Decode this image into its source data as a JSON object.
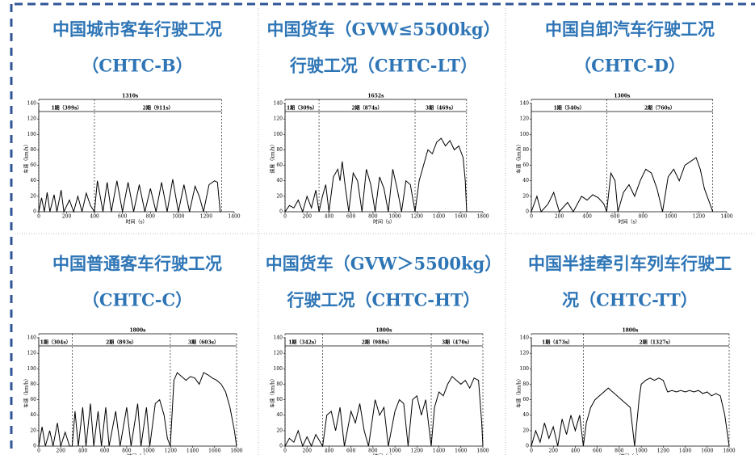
{
  "chart_data": [
    {
      "type": "line",
      "title": [
        "中国城市客车行驶工况",
        "（CHTC-B）"
      ],
      "xlabel": "时间（s）",
      "ylabel": "车速（km/h）",
      "color": "#000000",
      "xlim": [
        0,
        1400
      ],
      "xticks": [
        0,
        200,
        400,
        600,
        800,
        1000,
        1200,
        1400
      ],
      "ylim": [
        0,
        140
      ],
      "yticks": [
        0,
        20,
        40,
        60,
        80,
        100,
        120,
        140
      ],
      "duration_label": "1310s",
      "phases": [
        {
          "label": "1期（399s）",
          "duration": 399
        },
        {
          "label": "2期（911s）",
          "duration": 911
        }
      ],
      "x": [
        0,
        20,
        40,
        60,
        80,
        110,
        130,
        160,
        180,
        220,
        250,
        280,
        310,
        340,
        370,
        399,
        420,
        440,
        460,
        490,
        520,
        560,
        600,
        640,
        680,
        720,
        760,
        800,
        840,
        880,
        920,
        960,
        1000,
        1040,
        1080,
        1120,
        1150,
        1180,
        1220,
        1260,
        1280,
        1300,
        1310
      ],
      "values": [
        0,
        18,
        0,
        25,
        0,
        22,
        0,
        28,
        0,
        15,
        0,
        20,
        0,
        24,
        8,
        0,
        40,
        20,
        0,
        38,
        0,
        40,
        0,
        38,
        0,
        35,
        0,
        30,
        0,
        38,
        0,
        42,
        0,
        35,
        0,
        33,
        20,
        0,
        35,
        40,
        38,
        0,
        0
      ]
    },
    {
      "type": "line",
      "title": [
        "中国货车（GVW≤5500kg）",
        "行驶工况（CHTC-LT）"
      ],
      "xlabel": "时间（s）",
      "ylabel": "速度（km/h）",
      "color": "#000000",
      "xlim": [
        0,
        1800
      ],
      "xticks": [
        0,
        200,
        400,
        600,
        800,
        1000,
        1200,
        1400,
        1600,
        1800
      ],
      "ylim": [
        0,
        140
      ],
      "yticks": [
        0,
        20,
        40,
        60,
        80,
        100,
        120,
        140
      ],
      "duration_label": "1652s",
      "phases": [
        {
          "label": "1期（309s）",
          "duration": 309
        },
        {
          "label": "2期（874s）",
          "duration": 874
        },
        {
          "label": "3期（469s）",
          "duration": 469
        }
      ],
      "x": [
        0,
        40,
        80,
        120,
        160,
        200,
        240,
        280,
        309,
        340,
        370,
        400,
        440,
        480,
        500,
        520,
        550,
        580,
        620,
        660,
        700,
        740,
        780,
        820,
        860,
        900,
        940,
        980,
        1020,
        1060,
        1100,
        1140,
        1183,
        1220,
        1260,
        1300,
        1340,
        1380,
        1420,
        1460,
        1500,
        1540,
        1580,
        1620,
        1640,
        1652
      ],
      "values": [
        0,
        8,
        5,
        15,
        0,
        20,
        5,
        28,
        0,
        20,
        35,
        0,
        45,
        55,
        40,
        65,
        30,
        0,
        50,
        40,
        0,
        55,
        35,
        0,
        45,
        30,
        0,
        55,
        30,
        0,
        40,
        35,
        0,
        40,
        60,
        80,
        75,
        90,
        95,
        85,
        92,
        80,
        85,
        70,
        40,
        0
      ]
    },
    {
      "type": "line",
      "title": [
        "中国自卸汽车行驶工况",
        "（CHTC-D）"
      ],
      "xlabel": "时间（s）",
      "ylabel": "车速（km/h）",
      "color": "#000000",
      "xlim": [
        0,
        1400
      ],
      "xticks": [
        0,
        200,
        400,
        600,
        800,
        1000,
        1200,
        1400
      ],
      "ylim": [
        0,
        140
      ],
      "yticks": [
        0,
        20,
        40,
        60,
        80,
        100,
        120,
        140
      ],
      "duration_label": "1300s",
      "phases": [
        {
          "label": "1期（540s）",
          "duration": 540
        },
        {
          "label": "2期（760s）",
          "duration": 760
        }
      ],
      "x": [
        0,
        40,
        70,
        120,
        160,
        200,
        260,
        300,
        360,
        400,
        440,
        480,
        520,
        540,
        570,
        600,
        620,
        660,
        700,
        740,
        780,
        820,
        860,
        900,
        940,
        980,
        1020,
        1060,
        1100,
        1140,
        1180,
        1210,
        1240,
        1280,
        1300
      ],
      "values": [
        0,
        20,
        0,
        10,
        25,
        0,
        12,
        0,
        20,
        15,
        22,
        18,
        10,
        0,
        50,
        40,
        0,
        25,
        35,
        20,
        40,
        55,
        50,
        30,
        0,
        45,
        55,
        40,
        60,
        65,
        70,
        55,
        30,
        10,
        0
      ]
    },
    {
      "type": "line",
      "title": [
        "中国普通客车行驶工况",
        "（CHTC-C）"
      ],
      "xlabel": "时间（s）",
      "ylabel": "车速（km/h）",
      "color": "#000000",
      "xlim": [
        0,
        1800
      ],
      "xticks": [
        0,
        200,
        400,
        600,
        800,
        1000,
        1200,
        1400,
        1600,
        1800
      ],
      "ylim": [
        0,
        140
      ],
      "yticks": [
        0,
        20,
        40,
        60,
        80,
        100,
        120,
        140
      ],
      "duration_label": "1800s",
      "phases": [
        {
          "label": "1期（304s）",
          "duration": 304
        },
        {
          "label": "2期（893s）",
          "duration": 893
        },
        {
          "label": "3期（603s）",
          "duration": 603
        }
      ],
      "x": [
        0,
        30,
        60,
        100,
        130,
        170,
        200,
        240,
        280,
        304,
        330,
        360,
        400,
        430,
        470,
        500,
        540,
        570,
        610,
        640,
        700,
        740,
        800,
        840,
        900,
        930,
        980,
        1010,
        1060,
        1100,
        1140,
        1170,
        1197,
        1230,
        1260,
        1300,
        1340,
        1380,
        1420,
        1460,
        1500,
        1540,
        1580,
        1620,
        1660,
        1700,
        1740,
        1780,
        1800
      ],
      "values": [
        0,
        25,
        0,
        20,
        0,
        30,
        0,
        18,
        0,
        0,
        45,
        0,
        50,
        0,
        55,
        0,
        45,
        0,
        50,
        0,
        45,
        0,
        50,
        0,
        55,
        0,
        50,
        0,
        55,
        60,
        40,
        10,
        0,
        85,
        95,
        90,
        85,
        90,
        88,
        80,
        95,
        92,
        88,
        85,
        80,
        70,
        50,
        20,
        0
      ]
    },
    {
      "type": "line",
      "title": [
        "中国货车（GVW＞5500kg）",
        "行驶工况（CHTC-HT）"
      ],
      "xlabel": "时间（s）",
      "ylabel": "车速（km/h）",
      "color": "#000000",
      "xlim": [
        0,
        1800
      ],
      "xticks": [
        0,
        200,
        400,
        600,
        800,
        1000,
        1200,
        1400,
        1600,
        1800
      ],
      "ylim": [
        0,
        140
      ],
      "yticks": [
        0,
        20,
        40,
        60,
        80,
        100,
        120,
        140
      ],
      "duration_label": "1800s",
      "phases": [
        {
          "label": "1期（342s）",
          "duration": 342
        },
        {
          "label": "2期（988s）",
          "duration": 988
        },
        {
          "label": "3期（470s）",
          "duration": 470
        }
      ],
      "x": [
        0,
        40,
        80,
        120,
        160,
        200,
        240,
        280,
        342,
        380,
        420,
        460,
        500,
        540,
        600,
        640,
        680,
        720,
        760,
        820,
        860,
        900,
        940,
        1000,
        1040,
        1080,
        1120,
        1160,
        1200,
        1240,
        1280,
        1330,
        1360,
        1400,
        1440,
        1480,
        1520,
        1560,
        1600,
        1640,
        1680,
        1720,
        1760,
        1790,
        1800
      ],
      "values": [
        0,
        10,
        5,
        20,
        0,
        12,
        0,
        15,
        0,
        40,
        45,
        20,
        50,
        0,
        45,
        30,
        55,
        20,
        0,
        60,
        40,
        50,
        0,
        45,
        60,
        55,
        0,
        60,
        65,
        40,
        60,
        0,
        50,
        70,
        65,
        80,
        90,
        85,
        80,
        85,
        75,
        88,
        85,
        30,
        0
      ]
    },
    {
      "type": "line",
      "title": [
        "中国半挂牵引车列车行驶工",
        "况（CHTC-TT）"
      ],
      "xlabel": "时间（s）",
      "ylabel": "车速（km/h）",
      "color": "#000000",
      "xlim": [
        0,
        1800
      ],
      "xticks": [
        0,
        200,
        400,
        600,
        800,
        1000,
        1200,
        1400,
        1600,
        1800
      ],
      "ylim": [
        0,
        140
      ],
      "yticks": [
        0,
        20,
        40,
        60,
        80,
        100,
        120,
        140
      ],
      "duration_label": "1800s",
      "phases": [
        {
          "label": "1期（473s）",
          "duration": 473
        },
        {
          "label": "2期（1327s）",
          "duration": 1327
        }
      ],
      "x": [
        0,
        40,
        80,
        120,
        160,
        200,
        240,
        280,
        320,
        360,
        400,
        440,
        473,
        500,
        540,
        580,
        620,
        660,
        700,
        740,
        780,
        820,
        860,
        900,
        940,
        980,
        1000,
        1040,
        1080,
        1120,
        1160,
        1200,
        1240,
        1280,
        1320,
        1360,
        1400,
        1440,
        1480,
        1520,
        1560,
        1600,
        1640,
        1680,
        1720,
        1760,
        1800
      ],
      "values": [
        0,
        20,
        5,
        30,
        10,
        25,
        0,
        35,
        15,
        40,
        20,
        40,
        0,
        30,
        50,
        60,
        65,
        70,
        75,
        70,
        65,
        60,
        55,
        50,
        0,
        60,
        80,
        85,
        88,
        85,
        88,
        85,
        70,
        72,
        70,
        72,
        70,
        72,
        70,
        72,
        68,
        70,
        65,
        68,
        65,
        40,
        0
      ]
    }
  ]
}
